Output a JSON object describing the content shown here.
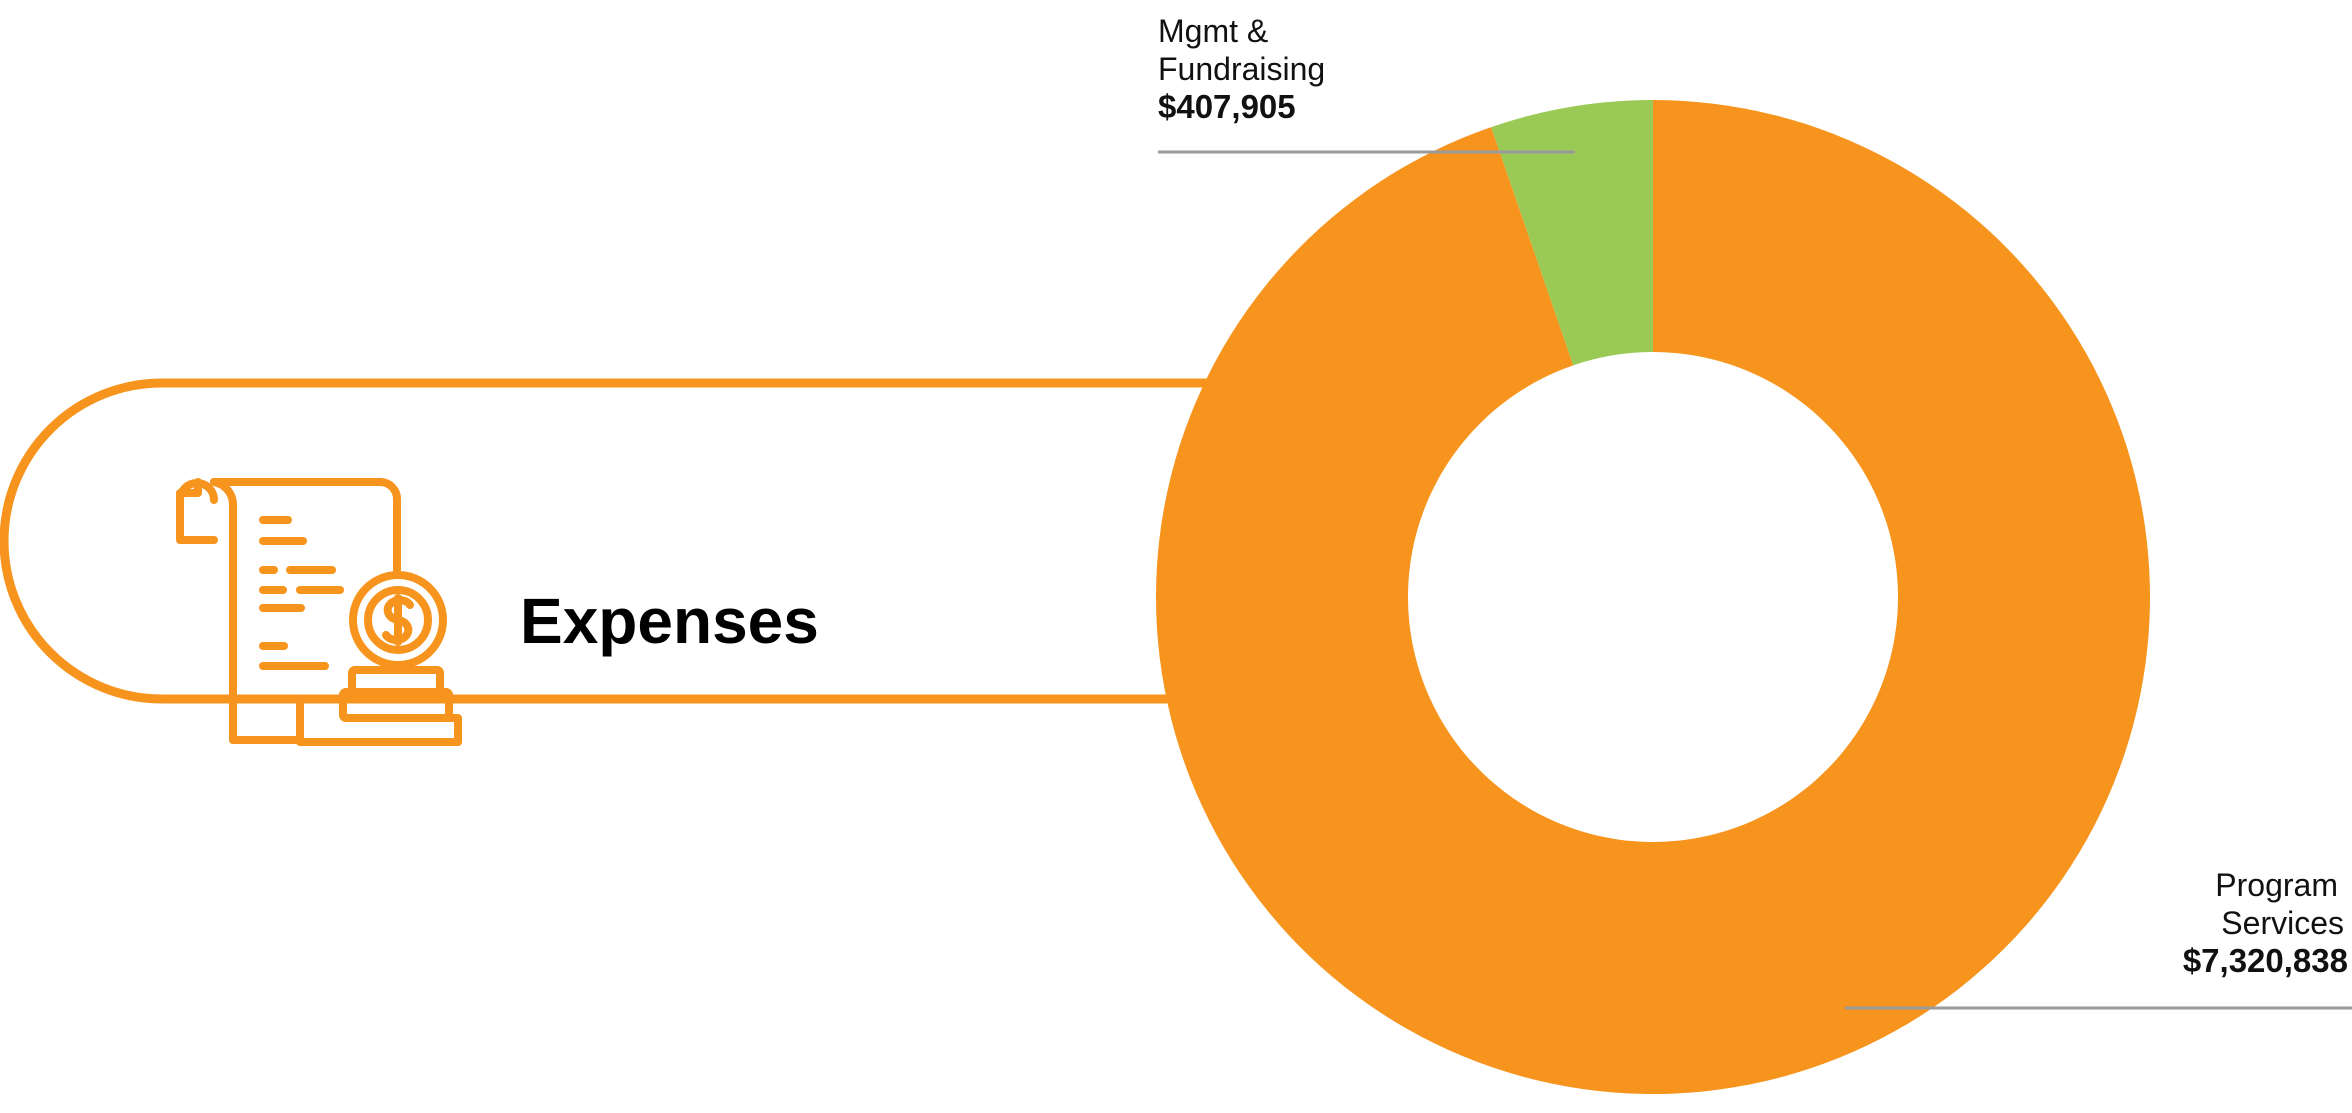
{
  "title": "Expenses",
  "icon": "receipt-dollar-coins-icon",
  "colors": {
    "accent": "#F7941D",
    "program_services": "#F7941D",
    "mgmt_fundraising": "#9ACA55",
    "leader": "#9A9A9A",
    "text": "#111111"
  },
  "chart_data": {
    "type": "pie",
    "variant": "donut",
    "currency": "USD",
    "slices": [
      {
        "label_lines": [
          "Program",
          "Services"
        ],
        "value": 7320838,
        "display": "$7,320,838",
        "color": "#F7941D"
      },
      {
        "label_lines": [
          "Mgmt &",
          "Fundraising"
        ],
        "value": 407905,
        "display": "$407,905",
        "color": "#9ACA55"
      }
    ],
    "legend": "none"
  }
}
